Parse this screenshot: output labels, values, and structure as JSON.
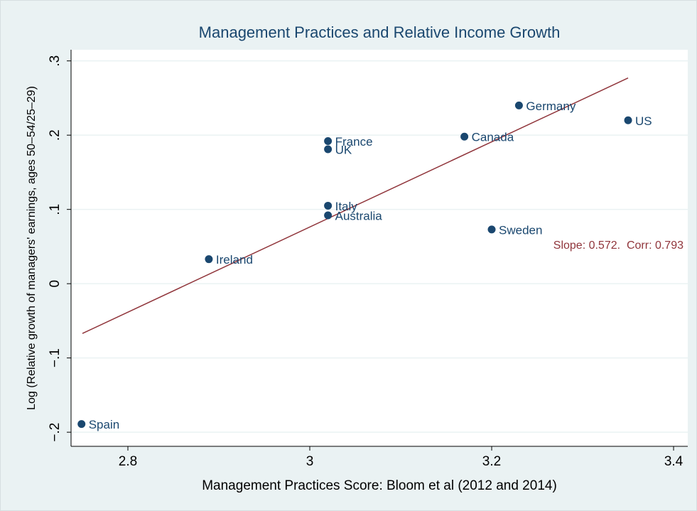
{
  "chart_data": {
    "type": "scatter",
    "title": "Management Practices and Relative Income Growth",
    "x_label": "Management Practices Score: Bloom et al (2012 and 2014)",
    "y_label": "Log (Relative growth of managers' earnings, ages 50–54/25–29)",
    "labels": [
      "Spain",
      "Ireland",
      "Italy",
      "Australia",
      "France",
      "UK",
      "Canada",
      "Germany",
      "US",
      "Sweden"
    ],
    "x": [
      2.749,
      2.889,
      3.02,
      3.02,
      3.02,
      3.02,
      3.17,
      3.23,
      3.35,
      3.2
    ],
    "y": [
      -0.189,
      0.033,
      0.105,
      0.092,
      0.192,
      0.181,
      0.198,
      0.24,
      0.22,
      0.073
    ],
    "color": "#1a476f",
    "fit_line": {
      "x": [
        2.75,
        3.35
      ],
      "y": [
        -0.067,
        0.277
      ],
      "color": "#90353b"
    },
    "annotation": "Slope: 0.572.  Corr: 0.793",
    "xlim": [
      2.7375,
      3.4156
    ],
    "ylim": [
      -0.219,
      0.315
    ],
    "xticks": [
      2.8,
      3,
      3.2,
      3.4
    ],
    "yticks": [
      {
        "value": -0.2,
        "label": "−.2"
      },
      {
        "value": -0.1,
        "label": "−.1"
      },
      0,
      {
        "value": 0.1,
        "label": ".1"
      },
      {
        "value": 0.2,
        "label": ".2"
      },
      {
        "value": 0.3,
        "label": ".3"
      }
    ],
    "grid": true
  }
}
